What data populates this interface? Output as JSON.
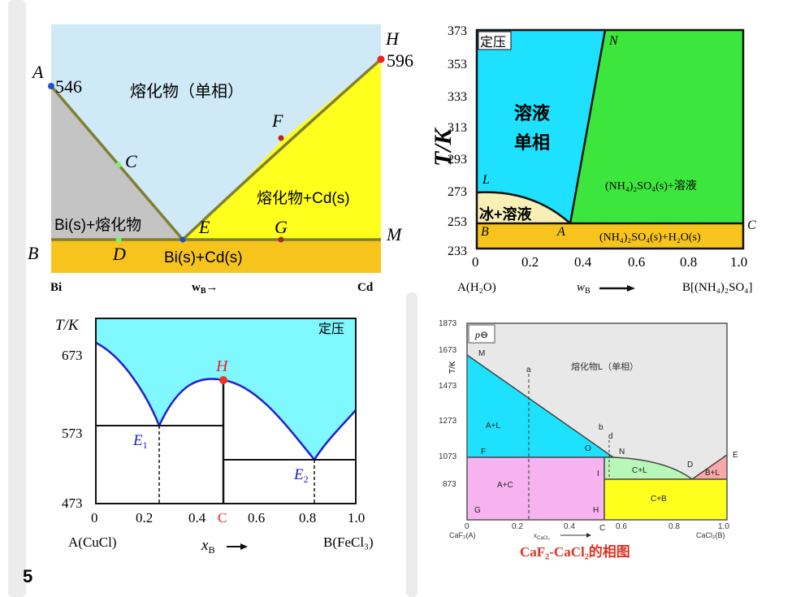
{
  "slide": {
    "number": "5"
  },
  "d1": {
    "points": {
      "A": "A",
      "B": "B",
      "C": "C",
      "D": "D",
      "E": "E",
      "F": "F",
      "G": "G",
      "H": "H",
      "M": "M"
    },
    "temps": {
      "a": "546",
      "h": "596"
    },
    "regions": {
      "melt": "熔化物（单相）",
      "melt_cd": "熔化物+Cd(s)",
      "bi_melt": "Bi(s)+熔化物",
      "solid": "Bi(s)+Cd(s)"
    },
    "axis": {
      "left": "Bi",
      "mid": "w",
      "mid_sub": "B",
      "mid_arrow": "→",
      "right": "Cd"
    },
    "colors": {
      "melt": "#cfe9f7",
      "melt_cd": "#ffff1e",
      "bi_melt": "#c4c4c4",
      "solid": "#f7c41e",
      "line": "#808030"
    }
  },
  "d2": {
    "y_ticks": [
      "373",
      "353",
      "333",
      "313",
      "293",
      "273",
      "253",
      "233"
    ],
    "x_ticks": [
      "0",
      "0.2",
      "0.4",
      "0.6",
      "0.8",
      "1.0"
    ],
    "ylabel": "T/K",
    "box_label": "定压",
    "regions": {
      "solution1": "溶液",
      "solution2": "单相",
      "ice": "冰+溶液",
      "salt_solution": "(NH₄)₂SO₄(s)+溶液",
      "solid": "(NH₄)₂SO₄(s)+H₂O(s)"
    },
    "points": {
      "N": "N",
      "L": "L",
      "A": "A",
      "B": "B",
      "C": "C"
    },
    "axis": {
      "left": "A(H₂O)",
      "mid": "w",
      "mid_sub": "B",
      "right": "B[(NH₄)₂SO₄]"
    },
    "colors": {
      "solution": "#1ee1ff",
      "salt": "#3ce63c",
      "ice": "#f7efb6",
      "solid": "#f7c41e"
    }
  },
  "d3": {
    "ylabel": "T/K",
    "y_ticks": [
      "673",
      "573",
      "473"
    ],
    "x_ticks": [
      "0",
      "0.2",
      "0.4",
      "C",
      "0.6",
      "0.8",
      "1.0"
    ],
    "box_label": "定压",
    "points": {
      "H": "H",
      "E1": "E",
      "E1_sub": "1",
      "E2": "E",
      "E2_sub": "2"
    },
    "axis": {
      "left": "A(CuCl)",
      "mid": "x",
      "mid_sub": "B",
      "right": "B(FeCl₃)"
    },
    "colors": {
      "liquid": "#7ff8ff",
      "curve": "#2020d0",
      "H": "#ee3322"
    }
  },
  "d4": {
    "y_ticks": [
      "1873",
      "1673",
      "1473",
      "1273",
      "1073",
      "873"
    ],
    "x_ticks": [
      "0",
      "0.2",
      "0.4",
      "0.6",
      "0.8",
      "1.0"
    ],
    "ylabel": "T/K",
    "pressure": "p⊖",
    "regions": {
      "melt": "熔化物L（单相）",
      "AL": "A+L",
      "AC": "A+C",
      "CL": "C+L",
      "BL": "B+L",
      "CB": "C+B"
    },
    "points": {
      "M": "M",
      "a": "a",
      "b": "b",
      "d": "d",
      "O": "O",
      "N": "N",
      "F": "F",
      "I": "I",
      "D": "D",
      "E": "E",
      "G": "G",
      "H": "H",
      "C": "C"
    },
    "axis": {
      "left": "CaF₂(A)",
      "mid": "x",
      "mid_sub": "CaCl₂",
      "right": "CaCl₂(B)"
    },
    "caption": "CaF₂-CaCl₂的相图",
    "colors": {
      "melt": "#e8e8e8",
      "AL": "#1ee1ff",
      "AC": "#f7b3f0",
      "CL": "#b8f7b8",
      "BL": "#f7a8a8",
      "CB": "#ffff1e",
      "caption": "#dd3322"
    }
  }
}
